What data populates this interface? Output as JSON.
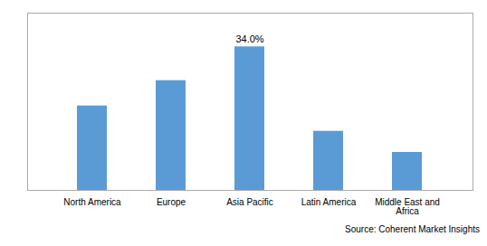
{
  "chart_data": {
    "type": "bar",
    "categories": [
      "North America",
      "Europe",
      "Asia Pacific",
      "Latin America",
      "Middle East and\nAfrica"
    ],
    "values": [
      20.0,
      26.0,
      34.0,
      14.0,
      9.0
    ],
    "color": "#5B9BD5",
    "ylim": [
      0,
      42
    ],
    "yticks": [],
    "tick_labels": "x",
    "grid": false,
    "annotations": [
      {
        "text": "34.0%",
        "category": "Asia Pacific"
      }
    ],
    "source": "Source: Coherent Market Insights"
  }
}
